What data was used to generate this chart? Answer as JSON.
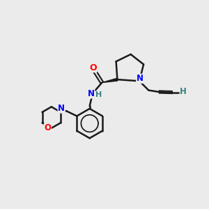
{
  "background_color": "#ebebeb",
  "atom_colors": {
    "N": "#0000ff",
    "O": "#ff0000",
    "H": "#3a8080"
  },
  "bond_color": "#1a1a1a",
  "bond_width": 1.8,
  "figsize": [
    3.0,
    3.0
  ],
  "dpi": 100,
  "xlim": [
    0.0,
    10.0
  ],
  "ylim": [
    0.5,
    10.5
  ]
}
